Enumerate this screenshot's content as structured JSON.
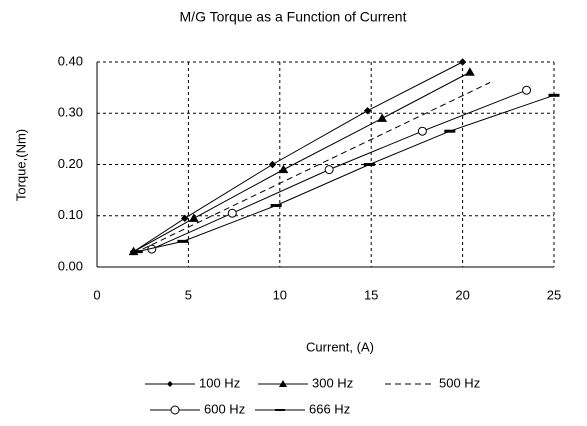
{
  "chart_data": {
    "type": "line",
    "title": "M/G Torque as a Function of Current",
    "xlabel": "Current, (A)",
    "ylabel": "Torque,(Nm)",
    "xlim": [
      0,
      25
    ],
    "xticks": [
      0,
      5,
      10,
      15,
      20,
      25
    ],
    "ylim": [
      0,
      0.4
    ],
    "yticks": [
      {
        "value": 0,
        "label": "0.00"
      },
      {
        "value": 0.1,
        "label": "0.10"
      },
      {
        "value": 0.2,
        "label": "0.20"
      },
      {
        "value": 0.3,
        "label": "0.30"
      },
      {
        "value": 0.4,
        "label": "0.40"
      }
    ],
    "grid": true,
    "legend": "bottom",
    "series": [
      {
        "name": "100 Hz",
        "color": "#000000",
        "marker": "diamond",
        "x": [
          2,
          4.8,
          9.6,
          14.8,
          20
        ],
        "values": [
          0.03,
          0.095,
          0.2,
          0.305,
          0.4
        ]
      },
      {
        "name": "300 Hz",
        "color": "#000000",
        "marker": "triangle",
        "x": [
          2,
          5.3,
          10.2,
          15.6,
          20.4
        ],
        "values": [
          0.03,
          0.095,
          0.19,
          0.29,
          0.38
        ]
      },
      {
        "name": "500 Hz",
        "color": "#000000",
        "marker": "none",
        "dashed": true,
        "x": [
          2.5,
          21.5
        ],
        "values": [
          0.035,
          0.36
        ]
      },
      {
        "name": "600 Hz",
        "color": "#000000",
        "marker": "circle",
        "x": [
          3,
          7.4,
          12.7,
          17.8,
          23.5
        ],
        "values": [
          0.035,
          0.105,
          0.19,
          0.265,
          0.345
        ]
      },
      {
        "name": "666 Hz",
        "color": "#000000",
        "marker": "dash",
        "x": [
          2.2,
          4.7,
          9.8,
          14.9,
          19.3,
          25
        ],
        "values": [
          0.03,
          0.05,
          0.12,
          0.2,
          0.265,
          0.335
        ]
      }
    ]
  }
}
